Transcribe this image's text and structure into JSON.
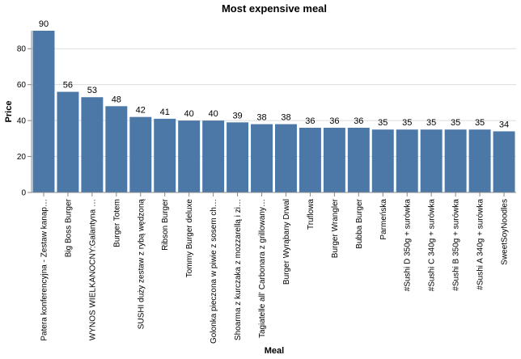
{
  "chart_data": {
    "type": "bar",
    "title": "Most expensive meal",
    "xlabel": "Meal",
    "ylabel": "Price",
    "ylim": [
      0,
      90
    ],
    "yticks": [
      0,
      20,
      40,
      60,
      80
    ],
    "grid": true,
    "bar_color": "#4c78a8",
    "categories": [
      "Patera konferencyjna  - Zestaw kanap…",
      "Big Boss Burger",
      "WYNOS WIELKANOCNY:Galantyna …",
      "Burger Totem",
      "SUSHI duży zestaw z rybą wędzoną",
      "Ribson Burger",
      "Tommy Burger  deluxe",
      "Golonka pieczona w piwie z sosem ch…",
      "Shoarma z kurczaka z mozzarellą i zi…",
      "Tagiatelle all' Carbonara z grillowany…",
      "Burger Wyrąbany Drwal",
      "Truflowa",
      "Burger Wrangler",
      "Bubba Burger",
      "Parmeńska",
      "#Sushi D 350g + surówka",
      "#Sushi C 340g + surówka",
      "#Sushi B 350g + surówka",
      "#Sushi A 340g + surówka",
      "SweetSoyNoodles"
    ],
    "values": [
      90,
      56,
      53,
      48,
      42,
      41,
      40,
      40,
      39,
      38,
      38,
      36,
      36,
      36,
      35,
      35,
      35,
      35,
      35,
      34
    ]
  }
}
